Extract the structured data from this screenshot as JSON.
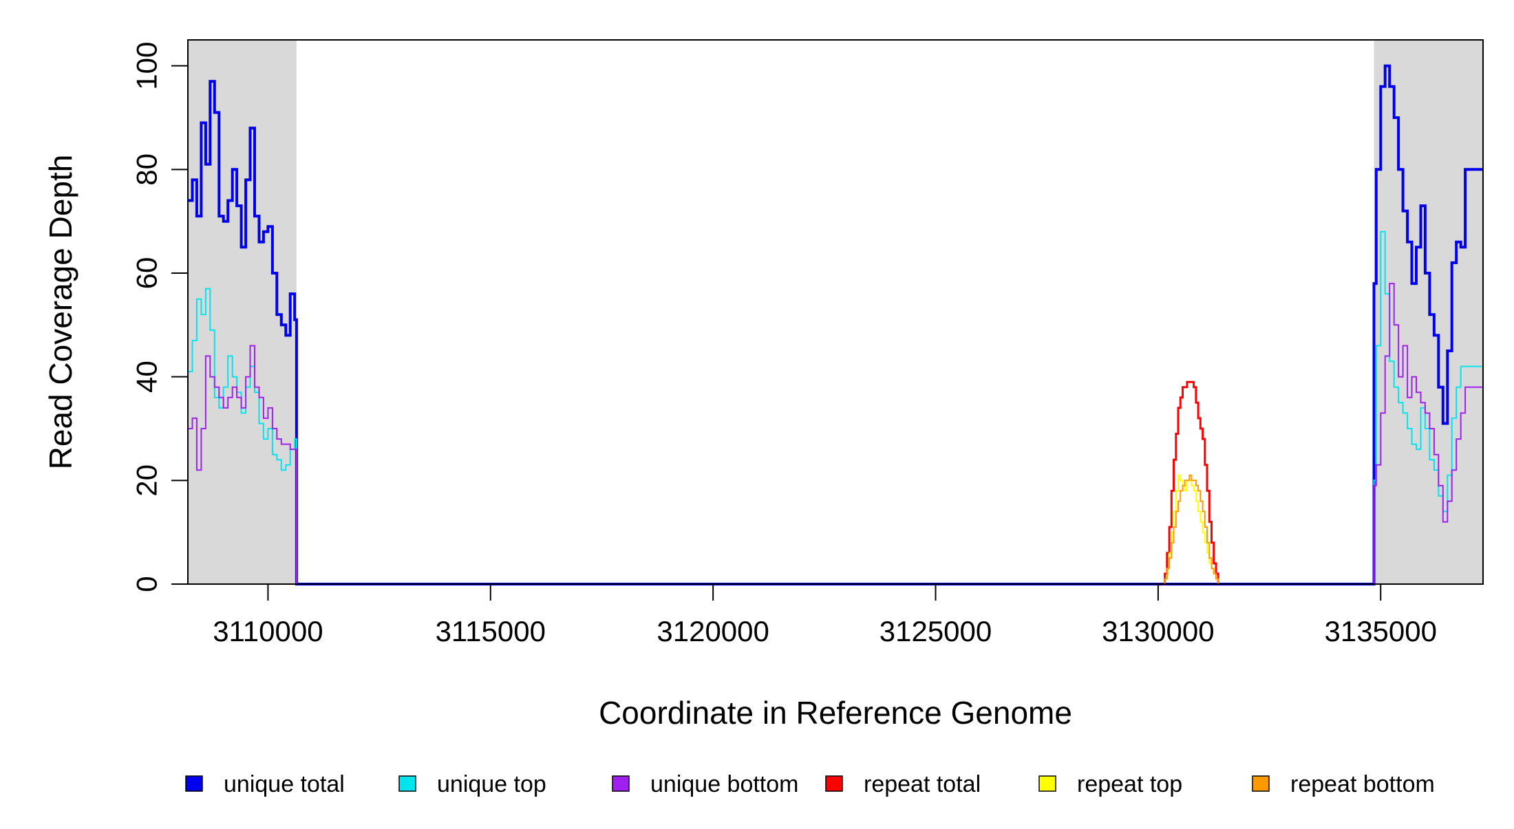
{
  "chart_data": {
    "type": "line",
    "xlabel": "Coordinate in Reference Genome",
    "ylabel": "Read Coverage Depth",
    "xlim": [
      3108200,
      3137300
    ],
    "ylim": [
      0,
      105
    ],
    "x_ticks": [
      3110000,
      3115000,
      3120000,
      3125000,
      3130000,
      3135000
    ],
    "x_tick_labels": [
      "3110000",
      "3115000",
      "3120000",
      "3125000",
      "3130000",
      "3135000"
    ],
    "y_ticks": [
      0,
      20,
      40,
      60,
      80,
      100
    ],
    "y_tick_labels": [
      "0",
      "20",
      "40",
      "60",
      "80",
      "100"
    ],
    "grid": false,
    "legend_position": "bottom",
    "shaded_regions": [
      {
        "x_start": 3108200,
        "x_end": 3110640,
        "color": "#d9d9d9"
      },
      {
        "x_start": 3134850,
        "x_end": 3137300,
        "color": "#d9d9d9"
      }
    ],
    "series": [
      {
        "name": "unique total",
        "color": "#0000ee",
        "stroke": 4,
        "x": [
          3108200,
          3108300,
          3108400,
          3108500,
          3108600,
          3108700,
          3108800,
          3108900,
          3109000,
          3109100,
          3109200,
          3109300,
          3109400,
          3109500,
          3109600,
          3109700,
          3109800,
          3109900,
          3110000,
          3110100,
          3110200,
          3110300,
          3110400,
          3110500,
          3110600,
          3110640,
          3110641,
          3134800,
          3134850,
          3134900,
          3135000,
          3135100,
          3135200,
          3135300,
          3135400,
          3135500,
          3135600,
          3135700,
          3135800,
          3135900,
          3136000,
          3136100,
          3136200,
          3136300,
          3136400,
          3136500,
          3136600,
          3136700,
          3136800,
          3136900,
          3137000,
          3137100,
          3137200,
          3137300
        ],
        "y": [
          74,
          78,
          71,
          89,
          81,
          97,
          91,
          71,
          70,
          74,
          80,
          73,
          65,
          78,
          88,
          71,
          66,
          68,
          69,
          60,
          52,
          50,
          48,
          56,
          51,
          51,
          0,
          0,
          58,
          80,
          96,
          100,
          96,
          90,
          80,
          72,
          66,
          58,
          65,
          73,
          60,
          52,
          48,
          38,
          31,
          45,
          62,
          66,
          65,
          80,
          80,
          80,
          80,
          80
        ]
      },
      {
        "name": "unique top",
        "color": "#00e5ee",
        "stroke": 2,
        "x": [
          3108200,
          3108300,
          3108400,
          3108500,
          3108600,
          3108700,
          3108800,
          3108900,
          3109000,
          3109100,
          3109200,
          3109300,
          3109400,
          3109500,
          3109600,
          3109700,
          3109800,
          3109900,
          3110000,
          3110100,
          3110200,
          3110300,
          3110400,
          3110500,
          3110600,
          3110640,
          3110641,
          3134800,
          3134850,
          3134900,
          3135000,
          3135100,
          3135200,
          3135300,
          3135400,
          3135500,
          3135600,
          3135700,
          3135800,
          3135900,
          3136000,
          3136100,
          3136200,
          3136300,
          3136400,
          3136500,
          3136600,
          3136700,
          3136800,
          3136900,
          3137000,
          3137100,
          3137200,
          3137300
        ],
        "y": [
          41,
          47,
          55,
          52,
          57,
          49,
          36,
          34,
          38,
          44,
          40,
          37,
          33,
          38,
          42,
          37,
          31,
          28,
          30,
          25,
          24,
          22,
          23,
          26,
          28,
          28,
          0,
          0,
          20,
          46,
          68,
          56,
          43,
          38,
          35,
          33,
          30,
          27,
          26,
          34,
          30,
          24,
          22,
          17,
          14,
          21,
          32,
          38,
          42,
          42,
          42,
          42,
          42,
          42
        ]
      },
      {
        "name": "unique bottom",
        "color": "#a020f0",
        "stroke": 2,
        "x": [
          3108200,
          3108300,
          3108400,
          3108500,
          3108600,
          3108700,
          3108800,
          3108900,
          3109000,
          3109100,
          3109200,
          3109300,
          3109400,
          3109500,
          3109600,
          3109700,
          3109800,
          3109900,
          3110000,
          3110100,
          3110200,
          3110300,
          3110400,
          3110500,
          3110600,
          3110640,
          3110641,
          3134800,
          3134850,
          3134900,
          3135000,
          3135100,
          3135200,
          3135300,
          3135400,
          3135500,
          3135600,
          3135700,
          3135800,
          3135900,
          3136000,
          3136100,
          3136200,
          3136300,
          3136400,
          3136500,
          3136600,
          3136700,
          3136800,
          3136900,
          3137000,
          3137100,
          3137200,
          3137300
        ],
        "y": [
          30,
          32,
          22,
          30,
          44,
          40,
          38,
          36,
          34,
          36,
          38,
          36,
          34,
          40,
          46,
          38,
          36,
          32,
          34,
          30,
          28,
          27,
          27,
          26,
          26,
          26,
          0,
          0,
          19,
          23,
          33,
          44,
          58,
          50,
          40,
          46,
          36,
          40,
          37,
          35,
          33,
          30,
          25,
          19,
          12,
          16,
          22,
          28,
          33,
          38,
          38,
          38,
          38,
          38
        ]
      },
      {
        "name": "repeat total",
        "color": "#ff0000",
        "stroke": 3,
        "x": [
          3130100,
          3130150,
          3130200,
          3130250,
          3130300,
          3130350,
          3130400,
          3130450,
          3130500,
          3130550,
          3130600,
          3130650,
          3130700,
          3130750,
          3130800,
          3130850,
          3130900,
          3130950,
          3131000,
          3131050,
          3131100,
          3131150,
          3131200,
          3131250,
          3131300,
          3131350,
          3131351
        ],
        "y": [
          0,
          2,
          6,
          11,
          18,
          24,
          29,
          34,
          36,
          38,
          38,
          39,
          39,
          39,
          38,
          35,
          32,
          30,
          28,
          23,
          18,
          12,
          8,
          4,
          2,
          0,
          0
        ]
      },
      {
        "name": "repeat top",
        "color": "#ffff00",
        "stroke": 2,
        "x": [
          3130100,
          3130150,
          3130200,
          3130250,
          3130300,
          3130350,
          3130400,
          3130450,
          3130500,
          3130550,
          3130600,
          3130650,
          3130700,
          3130750,
          3130800,
          3130850,
          3130900,
          3130950,
          3131000,
          3131050,
          3131100,
          3131150,
          3131200,
          3131250,
          3131300,
          3131350,
          3131351
        ],
        "y": [
          0,
          1,
          3,
          6,
          10,
          14,
          18,
          21,
          20,
          19,
          18,
          20,
          20,
          19,
          18,
          16,
          14,
          12,
          10,
          8,
          6,
          4,
          3,
          2,
          1,
          0,
          0
        ]
      },
      {
        "name": "repeat bottom",
        "color": "#ff9900",
        "stroke": 2,
        "x": [
          3130100,
          3130150,
          3130200,
          3130250,
          3130300,
          3130350,
          3130400,
          3130450,
          3130500,
          3130550,
          3130600,
          3130650,
          3130700,
          3130750,
          3130800,
          3130850,
          3130900,
          3130950,
          3131000,
          3131050,
          3131100,
          3131150,
          3131200,
          3131250,
          3131300,
          3131350,
          3131351
        ],
        "y": [
          0,
          1,
          3,
          5,
          8,
          11,
          14,
          16,
          18,
          19,
          20,
          20,
          21,
          20,
          20,
          19,
          18,
          16,
          14,
          11,
          8,
          5,
          3,
          2,
          1,
          0,
          0
        ]
      }
    ],
    "legend": [
      {
        "label": "unique total",
        "color": "#0000ee"
      },
      {
        "label": "unique top",
        "color": "#00e5ee"
      },
      {
        "label": "unique bottom",
        "color": "#a020f0"
      },
      {
        "label": "repeat total",
        "color": "#ff0000"
      },
      {
        "label": "repeat top",
        "color": "#ffff00"
      },
      {
        "label": "repeat bottom",
        "color": "#ff9900"
      }
    ]
  }
}
